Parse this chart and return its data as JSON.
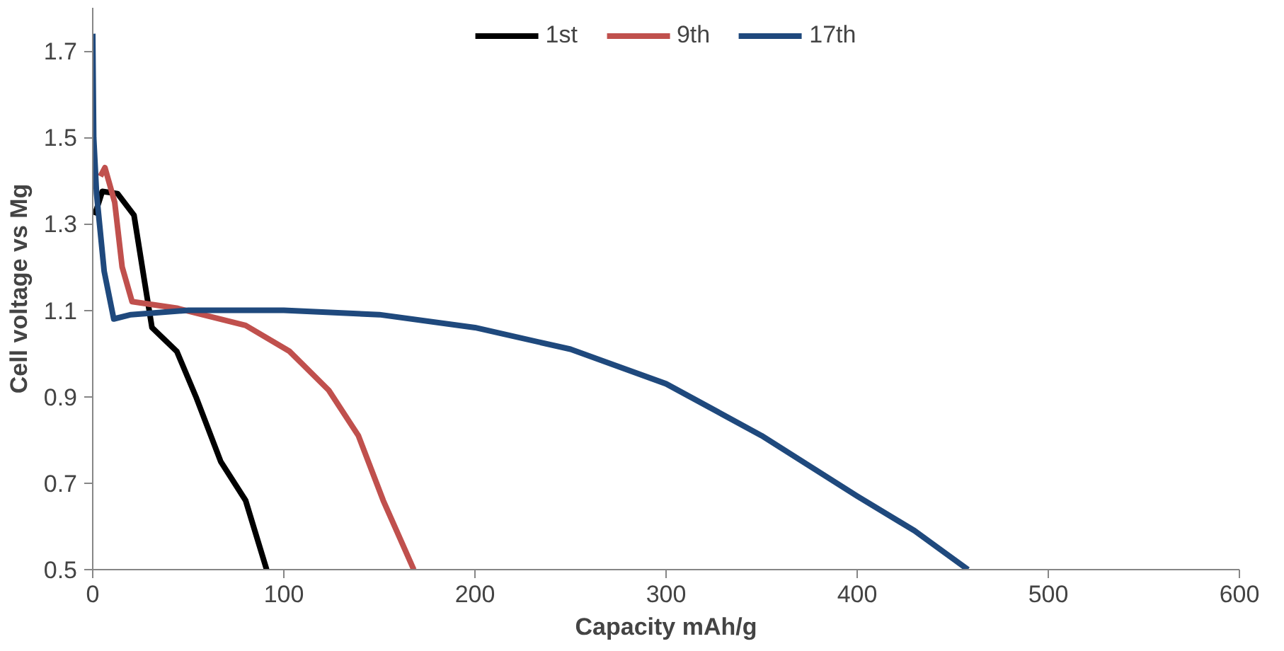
{
  "chart_data": {
    "type": "line",
    "xlabel": "Capacity mAh/g",
    "ylabel": "Cell voltage vs Mg",
    "xlim": [
      0,
      600
    ],
    "ylim": [
      0.5,
      1.8
    ],
    "xticks": [
      0,
      100,
      200,
      300,
      400,
      500,
      600
    ],
    "yticks": [
      0.5,
      0.7,
      0.9,
      1.1,
      1.3,
      1.5,
      1.7
    ],
    "grid": false,
    "legend": "top",
    "marker": "none",
    "line_style": "solid",
    "series": [
      {
        "name": "1st",
        "color": "#000000",
        "x": [
          1,
          5,
          13,
          21.6,
          27,
          31,
          44,
          54,
          67,
          80,
          91
        ],
        "values": [
          1.32,
          1.375,
          1.37,
          1.32,
          1.17,
          1.06,
          1.005,
          0.9,
          0.75,
          0.66,
          0.5
        ]
      },
      {
        "name": "9th",
        "color": "#c0504d",
        "x": [
          4,
          6.4,
          11.5,
          15.4,
          20.6,
          44,
          80,
          103,
          123.5,
          139,
          152,
          168
        ],
        "values": [
          1.41,
          1.43,
          1.35,
          1.2,
          1.12,
          1.105,
          1.065,
          1.005,
          0.915,
          0.81,
          0.66,
          0.5
        ]
      },
      {
        "name": "17th",
        "color": "#1f497d",
        "x": [
          0,
          0.5,
          2,
          6,
          11,
          20,
          50,
          100,
          150,
          200,
          250,
          300,
          350,
          400,
          430,
          458
        ],
        "values": [
          1.74,
          1.5,
          1.37,
          1.19,
          1.08,
          1.09,
          1.1,
          1.1,
          1.09,
          1.06,
          1.01,
          0.93,
          0.81,
          0.67,
          0.59,
          0.5
        ]
      }
    ]
  }
}
